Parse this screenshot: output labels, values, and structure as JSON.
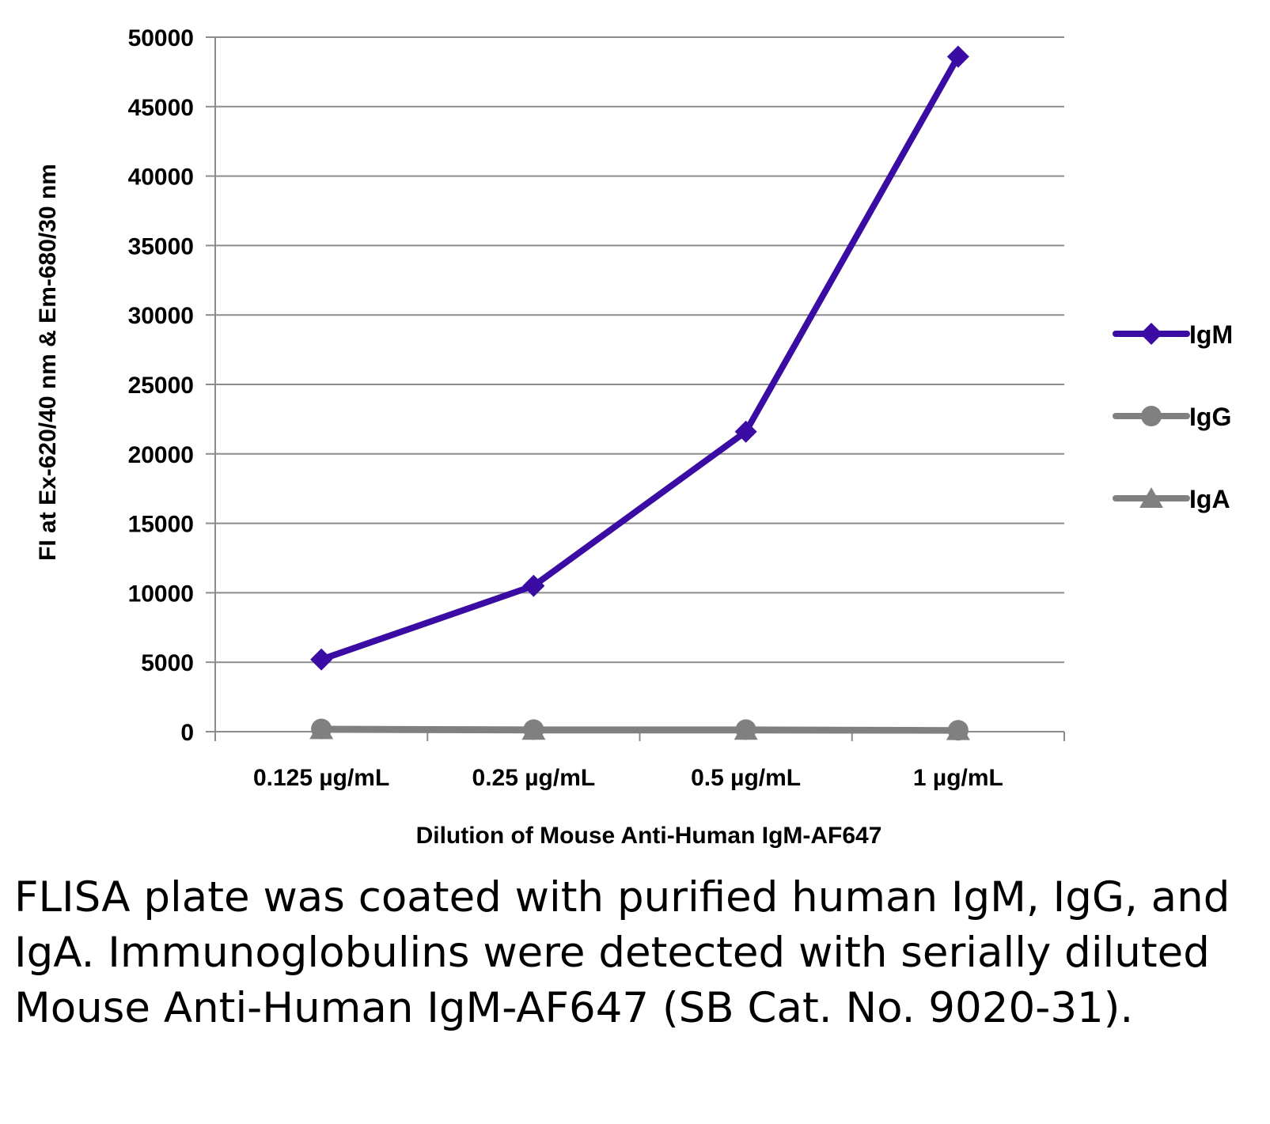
{
  "chart_data": {
    "type": "line",
    "title": "",
    "xlabel": "Dilution of Mouse Anti-Human IgM-AF647",
    "ylabel": "FI at Ex-620/40 nm & Em-680/30 nm",
    "categories": [
      "0.125 µg/mL",
      "0.25 µg/mL",
      "0.5 µg/mL",
      "1 µg/mL"
    ],
    "ylim": [
      0,
      50000
    ],
    "yticks": [
      0,
      5000,
      10000,
      15000,
      20000,
      25000,
      30000,
      35000,
      40000,
      45000,
      50000
    ],
    "grid": true,
    "legend_position": "right",
    "series": [
      {
        "name": "IgM",
        "values": [
          5200,
          10500,
          21600,
          48600
        ],
        "color": "#3a0ca3",
        "marker": "diamond"
      },
      {
        "name": "IgG",
        "values": [
          200,
          150,
          150,
          100
        ],
        "color": "#808080",
        "marker": "circle"
      },
      {
        "name": "IgA",
        "values": [
          150,
          100,
          100,
          80
        ],
        "color": "#808080",
        "marker": "triangle"
      }
    ]
  },
  "caption": "FLISA plate was coated with purified human IgM, IgG, and IgA.  Immunoglobulins were detected with serially diluted Mouse Anti-Human IgM-AF647 (SB Cat. No. 9020-31)."
}
